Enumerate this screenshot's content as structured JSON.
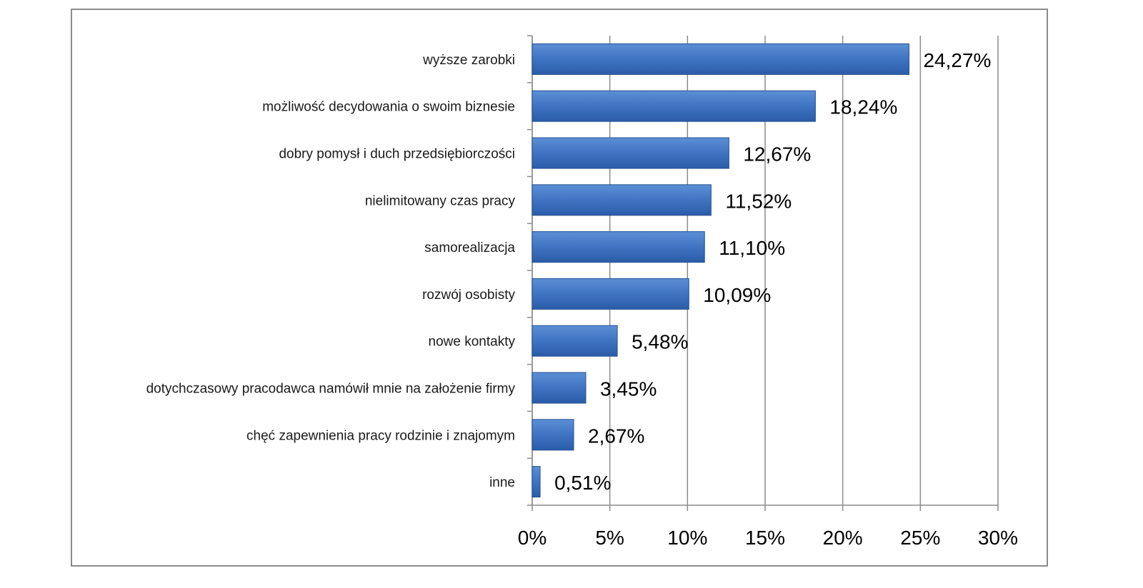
{
  "chart_data": {
    "type": "bar",
    "orientation": "horizontal",
    "title": "",
    "xlabel": "",
    "ylabel": "",
    "categories": [
      "wyższe zarobki",
      "możliwość decydowania o swoim biznesie",
      "dobry pomysł i duch przedsiębiorczości",
      "nielimitowany czas pracy",
      "samorealizacja",
      "rozwój osobisty",
      "nowe kontakty",
      "dotychczasowy pracodawca namówił mnie na założenie firmy",
      "chęć zapewnienia pracy rodzinie i znajomym",
      "inne"
    ],
    "values": [
      24.27,
      18.24,
      12.67,
      11.52,
      11.1,
      10.09,
      5.48,
      3.45,
      2.67,
      0.51
    ],
    "data_labels": [
      "24,27%",
      "18,24%",
      "12,67%",
      "11,52%",
      "11,10%",
      "10,09%",
      "5,48%",
      "3,45%",
      "2,67%",
      "0,51%"
    ],
    "xlim": [
      0,
      30
    ],
    "x_ticks": [
      0,
      5,
      10,
      15,
      20,
      25,
      30
    ],
    "x_tick_labels": [
      "0%",
      "5%",
      "10%",
      "15%",
      "20%",
      "25%",
      "30%"
    ],
    "grid": "vertical",
    "legend": "none",
    "colors": {
      "bar_top": "#5b8fd6",
      "bar_bottom": "#2a5ca8",
      "bar_edge": "#244f91",
      "grid": "#8c8c8c",
      "frame": "#8c8c8c"
    }
  }
}
